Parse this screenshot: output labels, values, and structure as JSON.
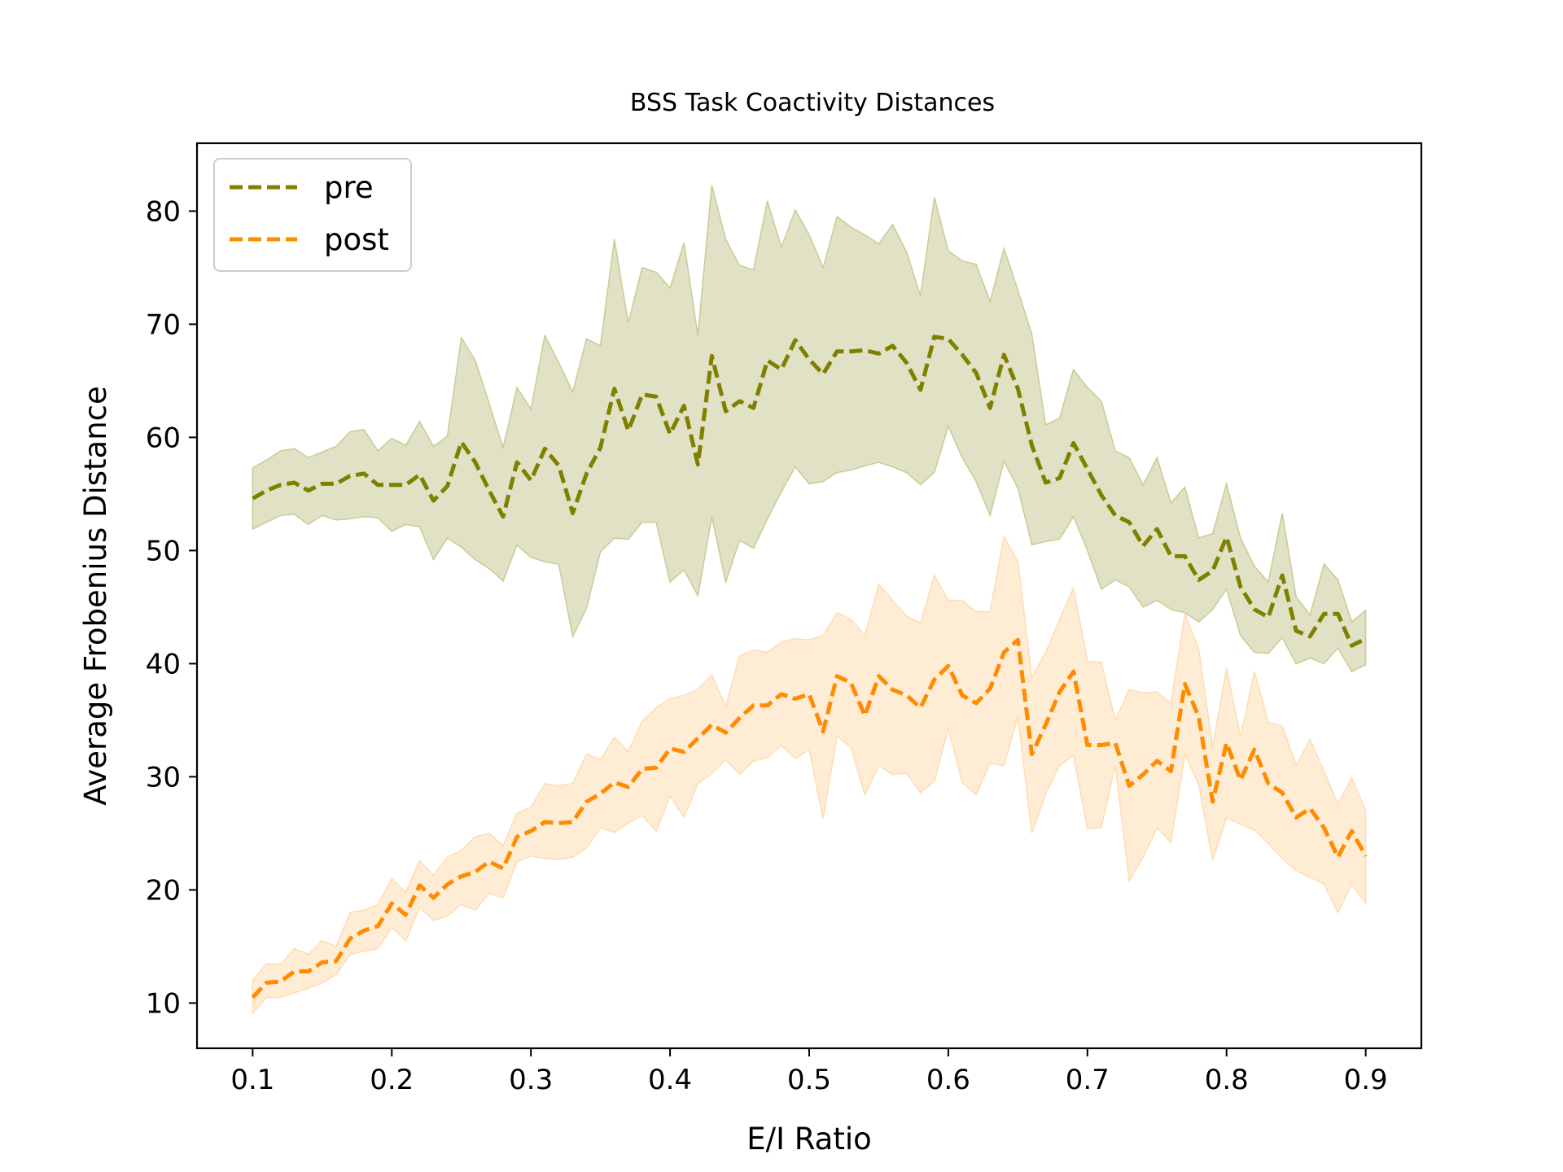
{
  "chart_data": {
    "type": "line",
    "title": "BSS Task Coactivity Distances",
    "xlabel": "E/I Ratio",
    "ylabel": "Average Frobenius Distance",
    "xlim": [
      0.06,
      0.94
    ],
    "ylim": [
      6,
      86
    ],
    "xticks": [
      0.1,
      0.2,
      0.3,
      0.4,
      0.5,
      0.6,
      0.7,
      0.8,
      0.9
    ],
    "xtick_labels": [
      "0.1",
      "0.2",
      "0.3",
      "0.4",
      "0.5",
      "0.6",
      "0.7",
      "0.8",
      "0.9"
    ],
    "yticks": [
      10,
      20,
      30,
      40,
      50,
      60,
      70,
      80
    ],
    "ytick_labels": [
      "10",
      "20",
      "30",
      "40",
      "50",
      "60",
      "70",
      "80"
    ],
    "grid": false,
    "legend": "top-left",
    "x": [
      0.1,
      0.11,
      0.12,
      0.13,
      0.14,
      0.15,
      0.16,
      0.17,
      0.18,
      0.19,
      0.2,
      0.21,
      0.22,
      0.23,
      0.24,
      0.25,
      0.26,
      0.27,
      0.28,
      0.29,
      0.3,
      0.31,
      0.32,
      0.33,
      0.34,
      0.35,
      0.36,
      0.37,
      0.38,
      0.39,
      0.4,
      0.41,
      0.42,
      0.43,
      0.44,
      0.45,
      0.46,
      0.47,
      0.48,
      0.49,
      0.5,
      0.51,
      0.52,
      0.53,
      0.54,
      0.55,
      0.56,
      0.57,
      0.58,
      0.59,
      0.6,
      0.61,
      0.62,
      0.63,
      0.64,
      0.65,
      0.66,
      0.67,
      0.68,
      0.69,
      0.7,
      0.71,
      0.72,
      0.73,
      0.74,
      0.75,
      0.76,
      0.77,
      0.78,
      0.79,
      0.8,
      0.81,
      0.82,
      0.83,
      0.84,
      0.85,
      0.86,
      0.87,
      0.88,
      0.89,
      0.9
    ],
    "series": [
      {
        "name": "pre",
        "color": "#808000",
        "band_color": "#c9cb95",
        "values": [
          54.6,
          55.3,
          55.8,
          56.0,
          55.3,
          55.9,
          55.9,
          56.6,
          56.8,
          55.8,
          55.8,
          55.8,
          56.7,
          54.4,
          55.7,
          59.6,
          57.8,
          55.3,
          53.0,
          57.8,
          56.2,
          59.0,
          57.5,
          53.3,
          56.8,
          59.1,
          64.3,
          60.6,
          63.8,
          63.6,
          60.3,
          62.8,
          57.6,
          67.2,
          62.3,
          63.2,
          62.6,
          66.8,
          66.0,
          68.6,
          66.9,
          65.6,
          67.6,
          67.6,
          67.7,
          67.4,
          68.1,
          66.6,
          64.2,
          68.9,
          68.7,
          67.3,
          65.7,
          62.6,
          67.3,
          64.3,
          59.3,
          56.0,
          56.4,
          59.5,
          57.2,
          54.9,
          53.1,
          52.5,
          50.4,
          51.9,
          49.5,
          49.5,
          47.4,
          48.2,
          51.2,
          46.8,
          44.8,
          44.1,
          47.8,
          42.9,
          42.4,
          44.4,
          44.4,
          41.6,
          42.2
        ],
        "upper": [
          57.3,
          58.0,
          58.8,
          59.0,
          58.2,
          58.7,
          59.2,
          60.5,
          60.7,
          58.8,
          59.9,
          59.3,
          61.4,
          59.2,
          60.1,
          68.8,
          66.8,
          63.0,
          59.1,
          64.4,
          62.5,
          69.0,
          66.6,
          64.0,
          68.7,
          68.1,
          77.5,
          70.1,
          75.0,
          74.6,
          73.2,
          77.2,
          69.0,
          82.3,
          77.5,
          75.2,
          74.8,
          80.9,
          76.8,
          80.1,
          77.9,
          75.0,
          79.5,
          78.6,
          77.9,
          77.1,
          78.8,
          76.4,
          72.5,
          81.2,
          76.5,
          75.6,
          75.3,
          72.0,
          76.7,
          73.0,
          69.1,
          61.1,
          61.7,
          66.0,
          64.4,
          63.2,
          58.8,
          58.2,
          55.8,
          58.2,
          54.2,
          55.6,
          51.1,
          51.5,
          55.9,
          51.1,
          48.6,
          47.2,
          53.3,
          45.9,
          44.3,
          48.8,
          47.4,
          43.7,
          44.7
        ],
        "lower": [
          51.9,
          52.5,
          53.1,
          53.2,
          52.3,
          53.1,
          52.7,
          52.8,
          53.0,
          52.9,
          51.7,
          52.3,
          52.1,
          49.2,
          51.1,
          50.3,
          49.2,
          48.4,
          47.3,
          50.5,
          49.4,
          49.0,
          48.8,
          42.4,
          44.9,
          49.9,
          51.1,
          51.0,
          52.5,
          52.5,
          47.2,
          48.3,
          46.0,
          53.0,
          47.2,
          50.9,
          50.2,
          52.8,
          55.2,
          57.4,
          55.9,
          56.1,
          56.9,
          57.1,
          57.5,
          57.8,
          57.4,
          56.9,
          55.8,
          56.9,
          61.0,
          58.2,
          56.1,
          53.1,
          57.9,
          55.5,
          50.5,
          50.8,
          51.0,
          53.0,
          50.0,
          46.6,
          47.4,
          46.8,
          45.0,
          45.6,
          44.8,
          44.5,
          43.7,
          44.8,
          46.6,
          42.5,
          41.0,
          40.9,
          42.3,
          40.0,
          40.5,
          40.0,
          41.4,
          39.3,
          39.9
        ]
      },
      {
        "name": "post",
        "color": "#ff8c00",
        "band_color": "#ffdcb3",
        "values": [
          10.5,
          11.8,
          11.9,
          12.8,
          12.8,
          13.6,
          13.7,
          15.7,
          16.4,
          16.8,
          18.8,
          17.8,
          20.4,
          19.3,
          20.5,
          21.2,
          21.6,
          22.5,
          21.9,
          24.7,
          25.2,
          26.0,
          25.9,
          26.0,
          27.8,
          28.5,
          29.5,
          29.1,
          30.7,
          30.8,
          32.5,
          32.2,
          33.4,
          34.6,
          33.9,
          35.2,
          36.3,
          36.3,
          37.3,
          36.9,
          37.3,
          34.0,
          38.9,
          38.3,
          35.4,
          38.9,
          37.7,
          37.2,
          36.1,
          38.6,
          39.8,
          37.2,
          36.5,
          37.8,
          41.0,
          42.1,
          32.0,
          34.6,
          37.5,
          39.3,
          32.8,
          32.8,
          33.0,
          29.2,
          30.2,
          31.4,
          30.5,
          38.2,
          35.3,
          27.8,
          33.0,
          29.7,
          32.4,
          29.4,
          28.6,
          26.4,
          27.2,
          25.5,
          22.9,
          25.2,
          23.0
        ],
        "upper": [
          12.0,
          13.5,
          13.4,
          14.8,
          14.3,
          15.5,
          15.0,
          18.0,
          18.2,
          18.7,
          21.0,
          19.8,
          22.6,
          21.3,
          22.9,
          23.5,
          24.7,
          25.0,
          23.9,
          26.8,
          27.3,
          29.4,
          29.2,
          29.4,
          32.0,
          31.5,
          33.5,
          32.2,
          34.9,
          36.1,
          36.9,
          37.2,
          37.7,
          39.0,
          36.2,
          40.7,
          41.2,
          41.0,
          41.9,
          42.2,
          42.1,
          42.5,
          44.5,
          43.9,
          42.5,
          47.0,
          45.6,
          44.2,
          43.6,
          47.8,
          45.6,
          45.6,
          44.6,
          44.6,
          51.2,
          49.0,
          38.8,
          41.0,
          43.9,
          46.7,
          40.2,
          40.1,
          35.0,
          37.7,
          37.4,
          37.5,
          36.5,
          44.4,
          41.3,
          32.6,
          39.6,
          33.5,
          39.3,
          34.8,
          34.5,
          31.0,
          33.3,
          30.5,
          27.6,
          29.9,
          27.0
        ],
        "lower": [
          9.1,
          10.5,
          10.5,
          10.9,
          11.3,
          11.8,
          12.5,
          14.3,
          14.6,
          14.8,
          16.7,
          15.5,
          18.5,
          17.3,
          17.7,
          18.7,
          18.2,
          19.7,
          19.3,
          22.5,
          23.0,
          22.8,
          22.7,
          22.9,
          23.7,
          25.5,
          25.1,
          25.9,
          26.6,
          25.2,
          28.3,
          26.4,
          29.4,
          30.3,
          31.5,
          30.2,
          31.4,
          31.7,
          32.8,
          31.6,
          32.4,
          26.3,
          33.6,
          32.6,
          28.4,
          31.0,
          30.2,
          30.3,
          28.6,
          29.6,
          34.3,
          29.5,
          28.4,
          31.2,
          31.0,
          35.3,
          25.0,
          28.5,
          31.0,
          31.9,
          25.4,
          25.5,
          31.0,
          20.8,
          22.9,
          25.5,
          24.2,
          32.0,
          29.3,
          22.6,
          26.4,
          25.8,
          25.3,
          24.1,
          22.8,
          21.7,
          21.1,
          20.5,
          18.0,
          20.5,
          18.8
        ]
      }
    ]
  }
}
